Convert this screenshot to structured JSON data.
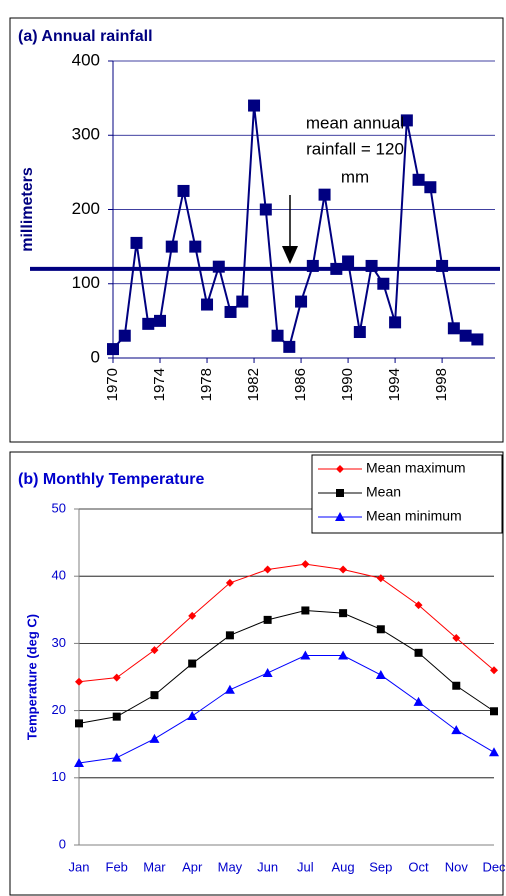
{
  "chart_data": [
    {
      "type": "line",
      "title": "(a) Annual rainfall",
      "y_label": "millimeters",
      "x": [
        1970,
        1971,
        1972,
        1973,
        1974,
        1975,
        1976,
        1977,
        1978,
        1979,
        1980,
        1981,
        1982,
        1983,
        1984,
        1985,
        1986,
        1987,
        1988,
        1989,
        1990,
        1991,
        1992,
        1993,
        1994,
        1995,
        1996,
        1997,
        1998,
        1999,
        2000,
        2001
      ],
      "series": [
        {
          "name": "Annual rainfall",
          "color": "#000080",
          "marker": "square",
          "values": [
            12,
            30,
            155,
            46,
            50,
            150,
            225,
            150,
            72,
            123,
            62,
            76,
            340,
            200,
            30,
            15,
            76,
            124,
            220,
            120,
            130,
            35,
            124,
            100,
            48,
            320,
            240,
            230,
            124,
            40,
            30,
            25
          ]
        }
      ],
      "reference_line": 120,
      "annotation": [
        "mean annual",
        "rainfall = 120",
        "mm"
      ],
      "xlim": [
        1970,
        2002.5
      ],
      "xticks": [
        1970,
        1974,
        1978,
        1982,
        1986,
        1990,
        1994,
        1998
      ],
      "ylim": [
        0,
        400
      ],
      "yticks": [
        0,
        100,
        200,
        300,
        400
      ],
      "grid": true,
      "legend": false
    },
    {
      "type": "line",
      "title": "(b) Monthly Temperature",
      "y_label": "Temperature (deg C)",
      "categories": [
        "Jan",
        "Feb",
        "Mar",
        "Apr",
        "May",
        "Jun",
        "Jul",
        "Aug",
        "Sep",
        "Oct",
        "Nov",
        "Dec"
      ],
      "series": [
        {
          "name": "Mean maximum",
          "color": "#ff0000",
          "marker": "diamond",
          "values": [
            24.3,
            24.9,
            29,
            34.1,
            39,
            41,
            41.8,
            41,
            39.7,
            35.7,
            30.8,
            26
          ]
        },
        {
          "name": "Mean",
          "color": "#000000",
          "marker": "square",
          "values": [
            18.1,
            19.1,
            22.3,
            27,
            31.2,
            33.5,
            34.9,
            34.5,
            32.1,
            28.6,
            23.7,
            19.9
          ]
        },
        {
          "name": "Mean minimum",
          "color": "#0000ff",
          "marker": "triangle",
          "values": [
            12.2,
            13,
            15.8,
            19.2,
            23.1,
            25.6,
            28.2,
            28.2,
            25.3,
            21.3,
            17.1,
            13.8
          ]
        }
      ],
      "ylim": [
        0,
        50
      ],
      "yticks": [
        0,
        10,
        20,
        30,
        40,
        50
      ],
      "grid": true,
      "legend": "upper right"
    }
  ]
}
